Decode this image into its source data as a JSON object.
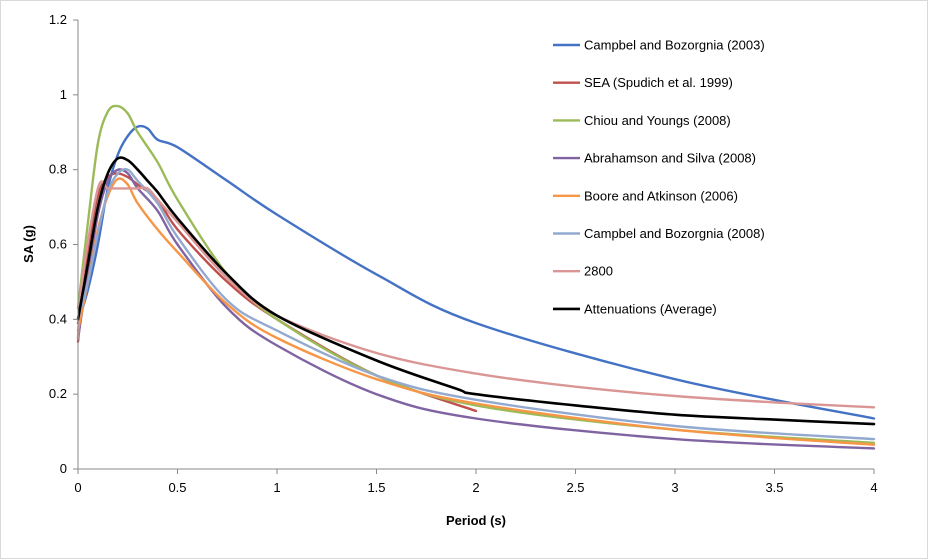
{
  "chart_data": {
    "type": "line",
    "title": "",
    "xlabel": "Period (s)",
    "ylabel": "SA (g)",
    "xlim": [
      0,
      4
    ],
    "ylim": [
      0,
      1.2
    ],
    "x_ticks": [
      "0",
      "0.5",
      "1",
      "1.5",
      "2",
      "2.5",
      "3",
      "3.5",
      "4"
    ],
    "y_ticks": [
      "0",
      "0.2",
      "0.4",
      "0.6",
      "0.8",
      "1",
      "1.2"
    ],
    "grid": false,
    "legend_position": "top-right",
    "series": [
      {
        "name": "Campbel and Bozorgnia (2003)",
        "color": "#4472C4",
        "x": [
          0,
          0.05,
          0.1,
          0.15,
          0.2,
          0.25,
          0.3,
          0.35,
          0.4,
          0.5,
          0.75,
          1.0,
          1.5,
          2.0,
          3.0,
          4.0
        ],
        "y": [
          0.39,
          0.48,
          0.6,
          0.75,
          0.84,
          0.89,
          0.915,
          0.91,
          0.88,
          0.86,
          0.77,
          0.68,
          0.52,
          0.39,
          0.24,
          0.135
        ]
      },
      {
        "name": "SEA (Spudich et al. 1999)",
        "color": "#C0504D",
        "x": [
          0,
          0.05,
          0.1,
          0.15,
          0.2,
          0.25,
          0.3,
          0.4,
          0.5,
          0.75,
          1.0,
          1.5,
          2.0
        ],
        "y": [
          0.34,
          0.58,
          0.73,
          0.78,
          0.79,
          0.78,
          0.76,
          0.72,
          0.64,
          0.5,
          0.4,
          0.25,
          0.155
        ]
      },
      {
        "name": "Chiou and Youngs (2008)",
        "color": "#9BBB59",
        "x": [
          0,
          0.05,
          0.1,
          0.15,
          0.2,
          0.25,
          0.3,
          0.4,
          0.5,
          0.75,
          1.0,
          1.5,
          2.0,
          3.0,
          4.0
        ],
        "y": [
          0.43,
          0.66,
          0.87,
          0.955,
          0.97,
          0.95,
          0.9,
          0.82,
          0.72,
          0.52,
          0.4,
          0.25,
          0.17,
          0.105,
          0.07
        ]
      },
      {
        "name": "Abrahamson and Silva (2008)",
        "color": "#8064A2",
        "x": [
          0,
          0.05,
          0.1,
          0.15,
          0.2,
          0.25,
          0.3,
          0.4,
          0.5,
          0.75,
          1.0,
          1.5,
          2.0,
          3.0,
          4.0
        ],
        "y": [
          0.35,
          0.52,
          0.68,
          0.77,
          0.8,
          0.79,
          0.75,
          0.69,
          0.6,
          0.43,
          0.33,
          0.2,
          0.135,
          0.08,
          0.055
        ]
      },
      {
        "name": "Boore and Atkinson (2006)",
        "color": "#F79646",
        "x": [
          0,
          0.05,
          0.1,
          0.15,
          0.2,
          0.25,
          0.3,
          0.4,
          0.5,
          0.75,
          1.0,
          1.5,
          2.0,
          3.0,
          4.0
        ],
        "y": [
          0.37,
          0.5,
          0.64,
          0.73,
          0.775,
          0.76,
          0.71,
          0.64,
          0.58,
          0.44,
          0.35,
          0.24,
          0.175,
          0.105,
          0.065
        ]
      },
      {
        "name": "Campbel and Bozorgnia (2008)",
        "color": "#93A9CF",
        "x": [
          0,
          0.05,
          0.1,
          0.15,
          0.2,
          0.25,
          0.3,
          0.4,
          0.5,
          0.75,
          1.0,
          1.5,
          2.0,
          3.0,
          4.0
        ],
        "y": [
          0.4,
          0.5,
          0.63,
          0.74,
          0.79,
          0.8,
          0.77,
          0.71,
          0.62,
          0.45,
          0.37,
          0.25,
          0.185,
          0.115,
          0.08
        ]
      },
      {
        "name": "2800",
        "color": "#D99694",
        "x": [
          0,
          0.02,
          0.1,
          0.15,
          0.2,
          0.25,
          0.3,
          0.35,
          0.4,
          0.5,
          0.75,
          1.0,
          1.5,
          2.0,
          2.5,
          3.0,
          3.5,
          4.0
        ],
        "y": [
          0.35,
          0.5,
          0.75,
          0.75,
          0.75,
          0.75,
          0.75,
          0.75,
          0.72,
          0.66,
          0.51,
          0.41,
          0.31,
          0.255,
          0.22,
          0.195,
          0.178,
          0.165
        ]
      },
      {
        "name": "Attenuations (Average)",
        "color": "#000000",
        "x": [
          0,
          0.05,
          0.1,
          0.15,
          0.2,
          0.25,
          0.3,
          0.35,
          0.4,
          0.5,
          0.75,
          1.0,
          1.5,
          1.9,
          2.0,
          2.5,
          3.0,
          3.5,
          4.0
        ],
        "y": [
          0.4,
          0.55,
          0.7,
          0.79,
          0.83,
          0.825,
          0.8,
          0.77,
          0.74,
          0.67,
          0.52,
          0.41,
          0.29,
          0.215,
          0.2,
          0.17,
          0.145,
          0.132,
          0.12
        ]
      }
    ]
  }
}
